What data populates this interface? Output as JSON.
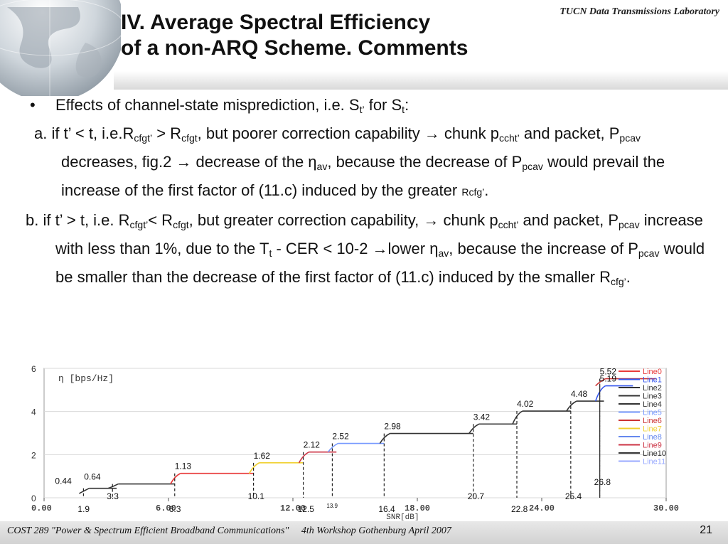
{
  "header": {
    "lab_label": "TUCN Data Transmissions Laboratory",
    "title_line1": "IV. Average Spectral Efficiency",
    "title_line2": "of a non-ARQ Scheme.  Comments"
  },
  "body": {
    "bullet_char": "•",
    "bullet_text_a": "Effects of channel-state misprediction, i.e. S",
    "bullet_sub_t1": "t’",
    "bullet_text_b": " for S",
    "bullet_sub_t2": "t",
    "bullet_text_c": ":",
    "a_1": "a. if t’ < t, i.e.R",
    "a_sub_cfgt1": "cfgt’",
    "a_2": " > R",
    "a_sub_cfgt2": "cfgt",
    "a_3": ", but poorer correction capability → chunk p",
    "a_sub_ccht": "ccht’",
    "a_4": " and packet, P",
    "a_sub_pcav1": "pcav",
    "a_5": " decreases, fig.2 → decrease of the η",
    "a_sub_av": "av",
    "a_6": ", because the decrease of P",
    "a_sub_pcav2": "pcav",
    "a_7": " would prevail the increase of the first factor of (11.c) induced by the greater ",
    "a_small": "Rcfg’",
    "a_8": ".",
    "b_1": "b. if t’ > t, i.e. R",
    "b_sub_cfgt1": "cfgt’",
    "b_2": "< R",
    "b_sub_cfgt2": "cfgt",
    "b_3": ", but greater correction capability, → chunk p",
    "b_sub_ccht": "ccht’",
    "b_4": " and packet, P",
    "b_sub_pcav1": "pcav",
    "b_5": " increase with less than 1%, due to the T",
    "b_sub_t": "t",
    "b_6": " - CER < 10-2 →lower η",
    "b_sub_av": "av",
    "b_7": ", because the increase of P",
    "b_sub_pcav2": "pcav",
    "b_8": " would be smaller than the decrease of the first factor of (11.c) induced by the smaller R",
    "b_sub_cfg": "cfg’",
    "b_9": "."
  },
  "footer": {
    "left": "COST 289 \"Power & Spectrum Efficient Broadband Communications\"",
    "middle": "4th Workshop Gothenburg April 2007",
    "page": "21"
  },
  "chart_data": {
    "type": "line",
    "ylabel": "η [bps/Hz]",
    "xlabel": "SNR[dB]",
    "xlim": [
      0,
      30
    ],
    "ylim": [
      0,
      6
    ],
    "x_ticks": [
      "0.00",
      "6.00",
      "12.00",
      "18.00",
      "24.00",
      "30.00"
    ],
    "y_ticks": [
      "0",
      "2",
      "4",
      "6"
    ],
    "legend": [
      "Line0",
      "Line1",
      "Line2",
      "Line3",
      "Line4",
      "Line5",
      "Line6",
      "Line7",
      "Line8",
      "Line9",
      "Line10",
      "Line11"
    ],
    "legend_placement": "top-right",
    "steps": [
      {
        "snr": 1.9,
        "eta": 0.44
      },
      {
        "snr": 3.3,
        "eta": 0.64
      },
      {
        "snr": 6.3,
        "eta": 1.13
      },
      {
        "snr": 10.1,
        "eta": 1.62
      },
      {
        "snr": 12.5,
        "eta": 2.12
      },
      {
        "snr": 13.9,
        "eta": 2.52
      },
      {
        "snr": 16.4,
        "eta": 2.98
      },
      {
        "snr": 20.7,
        "eta": 3.42
      },
      {
        "snr": 22.8,
        "eta": 4.02
      },
      {
        "snr": 25.4,
        "eta": 4.48
      },
      {
        "snr": 26.8,
        "eta": 5.19
      },
      {
        "snr": 26.8,
        "eta": 5.52
      }
    ],
    "eta_labels": [
      "0.44",
      "0.64",
      "1.13",
      "1.62",
      "2.12",
      "2.52",
      "2.98",
      "3.42",
      "4.02",
      "4.48",
      "5.19",
      "5.52"
    ],
    "snr_labels": [
      "1.9",
      "3.3",
      "6.3",
      "10.1",
      "12.5",
      "13.9",
      "16.4",
      "20.7",
      "22.8",
      "25.4",
      "26.8"
    ],
    "colors": {
      "Line0": "#e83a3a",
      "Line1": "#3355ee",
      "Line2": "#333333",
      "Line3": "#333333",
      "Line4": "#333333",
      "Line5": "#7799ff",
      "Line6": "#cc3333",
      "Line7": "#f0d030",
      "Line8": "#6688ee",
      "Line9": "#cc3344",
      "Line10": "#333333",
      "Line11": "#99aaff"
    }
  }
}
